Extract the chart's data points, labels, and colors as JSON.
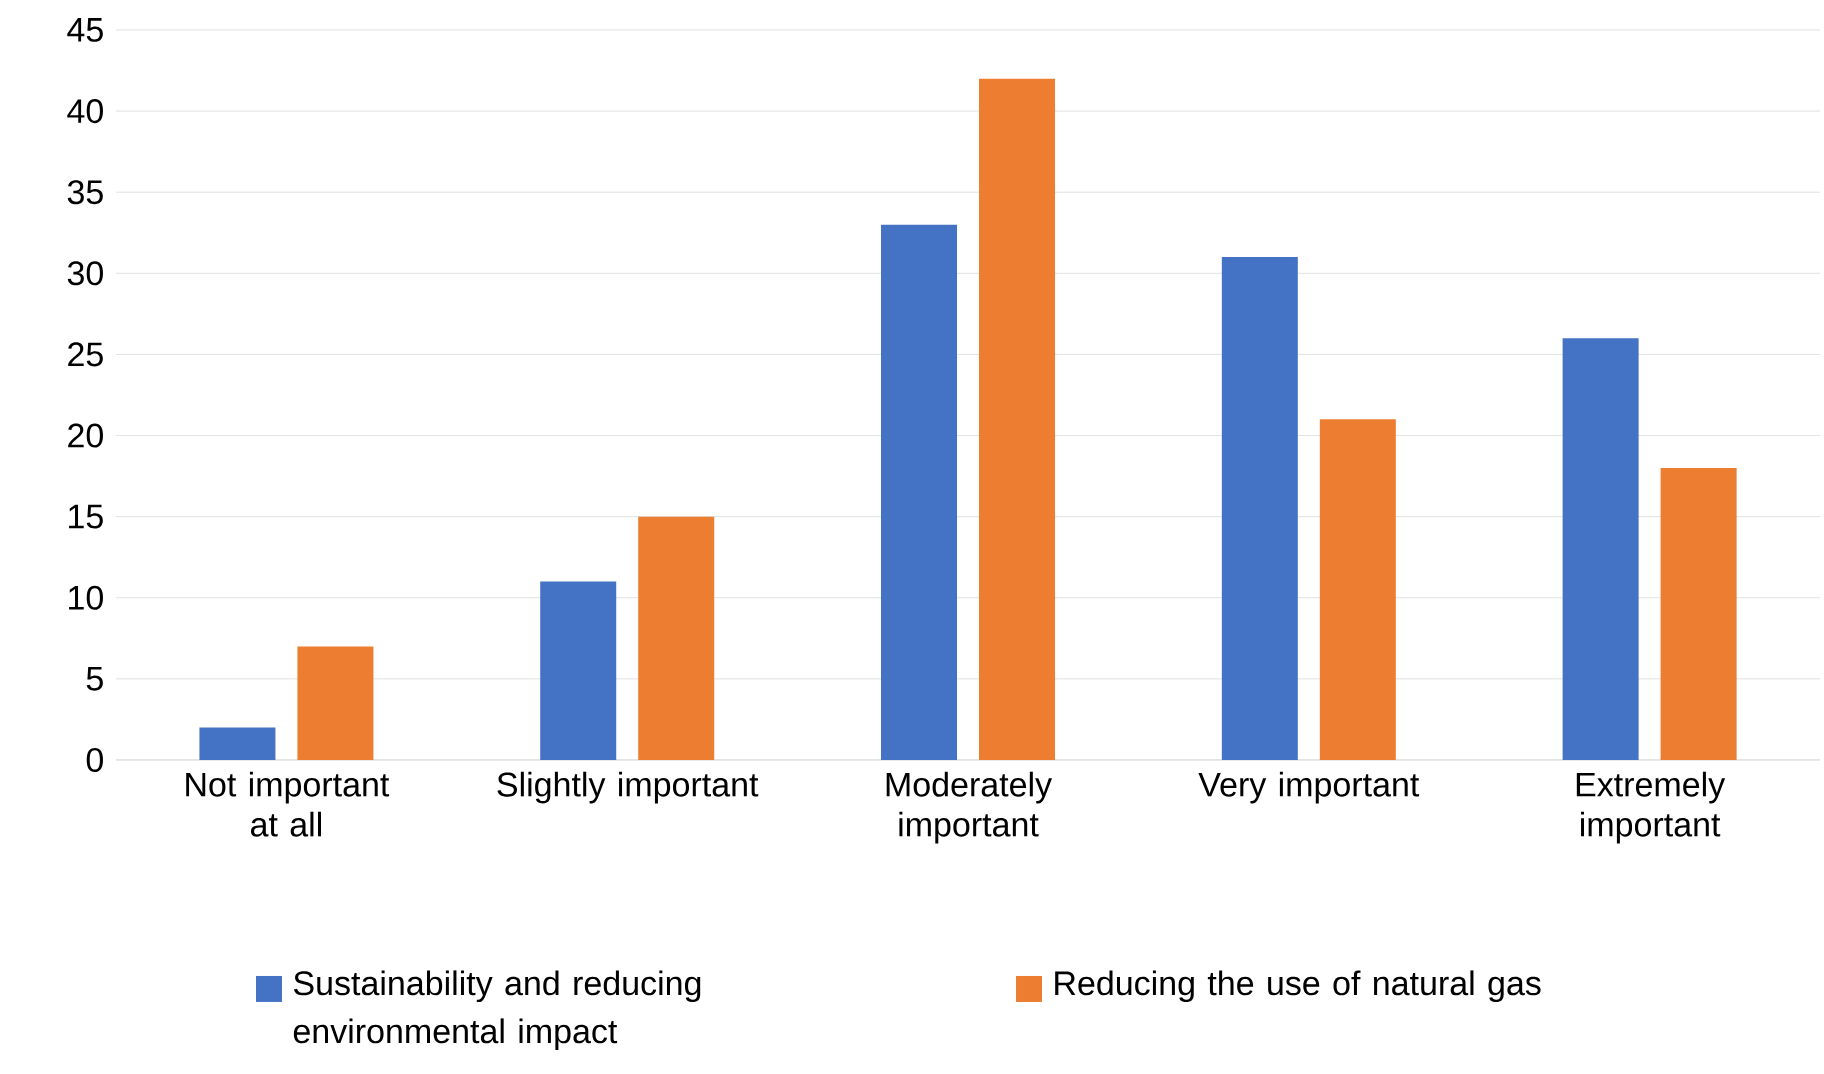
{
  "chart_data": {
    "type": "bar",
    "categories": [
      "Not important at all",
      "Slightly important",
      "Moderately important",
      "Very important",
      "Extremely important"
    ],
    "series": [
      {
        "name": "Sustainability and reducing environmental impact",
        "color": "#4472c4",
        "values": [
          2,
          11,
          33,
          31,
          26
        ]
      },
      {
        "name": "Reducing the use of natural gas",
        "color": "#ed7d31",
        "values": [
          7,
          15,
          42,
          21,
          18
        ]
      }
    ],
    "ylim": [
      0,
      45
    ],
    "yticks": [
      0,
      5,
      10,
      15,
      20,
      25,
      30,
      35,
      40,
      45
    ],
    "grid": "y",
    "legend": "bottom"
  }
}
